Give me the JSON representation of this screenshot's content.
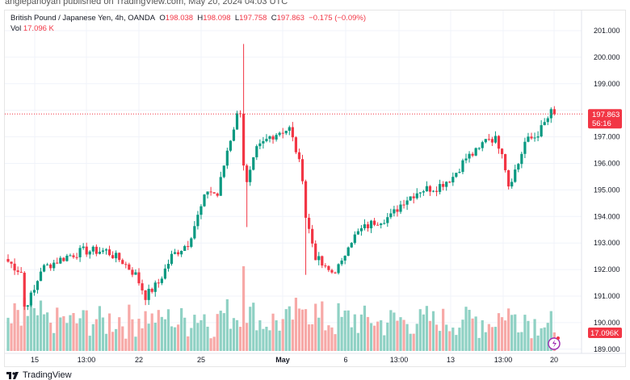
{
  "publisher_line": "anglepanoyan published on TradingView.com, May 20, 2024 04:03 UTC",
  "legend": {
    "symbol": "British Pound / Japanese Yen, 4h, OANDA",
    "o_label": "O",
    "o": "198.038",
    "h_label": "H",
    "h": "198.098",
    "l_label": "L",
    "l": "197.758",
    "c_label": "C",
    "c": "197.863",
    "change": "−0.175 (−0.09%)",
    "vol_label": "Vol",
    "vol": "17.096 K"
  },
  "price_tag": {
    "price": "197.863",
    "countdown": "56:16"
  },
  "vol_tag": "17.096K",
  "footer": {
    "brand": "TradingView"
  },
  "colors": {
    "up": "#089981",
    "down": "#f23645",
    "vol_up": "#8fd1c4",
    "vol_down": "#f7a9a7"
  },
  "chart_data": {
    "type": "candlestick",
    "title": "British Pound / Japanese Yen, 4h, OANDA",
    "ylim": [
      189,
      201
    ],
    "y_ticks": [
      "201.000",
      "200.000",
      "199.000",
      "198.000",
      "197.000",
      "196.000",
      "195.000",
      "194.000",
      "193.000",
      "192.000",
      "191.000",
      "190.000",
      "189.000"
    ],
    "x_ticks": [
      "15",
      "13:00",
      "22",
      "25",
      "May",
      "6",
      "13:00",
      "13",
      "13:00",
      "20"
    ],
    "candle_count": 168,
    "close_path": [
      [
        0,
        192.3
      ],
      [
        4,
        191.9
      ],
      [
        5,
        190.6
      ],
      [
        8,
        191.2
      ],
      [
        10,
        192.0
      ],
      [
        13,
        192.2
      ],
      [
        18,
        192.5
      ],
      [
        23,
        192.7
      ],
      [
        30,
        192.7
      ],
      [
        35,
        192.3
      ],
      [
        39,
        191.8
      ],
      [
        42,
        191.0
      ],
      [
        46,
        191.5
      ],
      [
        50,
        192.5
      ],
      [
        55,
        193.0
      ],
      [
        58,
        194.0
      ],
      [
        61,
        195.0
      ],
      [
        64,
        194.8
      ],
      [
        67,
        196.5
      ],
      [
        70,
        197.8
      ],
      [
        71,
        198.0
      ],
      [
        72,
        196.0
      ],
      [
        73,
        195.2
      ],
      [
        76,
        196.5
      ],
      [
        80,
        197.0
      ],
      [
        83,
        197.2
      ],
      [
        86,
        197.3
      ],
      [
        88,
        196.5
      ],
      [
        90,
        195.5
      ],
      [
        91,
        194.0
      ],
      [
        93,
        193.0
      ],
      [
        94,
        192.5
      ],
      [
        97,
        192.0
      ],
      [
        99,
        191.9
      ],
      [
        102,
        192.2
      ],
      [
        104,
        193.0
      ],
      [
        108,
        193.5
      ],
      [
        112,
        193.8
      ],
      [
        117,
        194.0
      ],
      [
        121,
        194.6
      ],
      [
        126,
        195.0
      ],
      [
        131,
        195.1
      ],
      [
        136,
        195.5
      ],
      [
        140,
        196.2
      ],
      [
        144,
        196.5
      ],
      [
        146,
        197.0
      ],
      [
        149,
        196.9
      ],
      [
        151,
        196.5
      ],
      [
        153,
        195.2
      ],
      [
        156,
        196.0
      ],
      [
        158,
        196.8
      ],
      [
        161,
        197.0
      ],
      [
        163,
        197.3
      ],
      [
        166,
        197.9
      ],
      [
        167,
        197.863
      ]
    ],
    "spike_high": {
      "index": 72,
      "price": 200.5
    },
    "volume_last": "17.096K"
  }
}
